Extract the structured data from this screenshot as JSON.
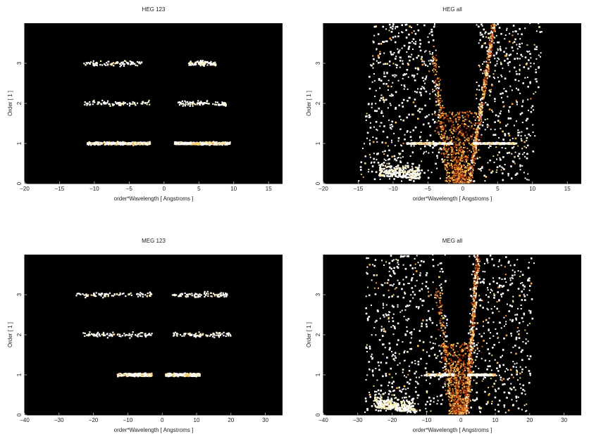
{
  "chart_data": [
    {
      "type": "heatmap",
      "title": "HEG 123",
      "xlabel": "order*Wavelength [ Angstroms ]",
      "ylabel": "Order [ 1 ]",
      "xlim": [
        -20,
        17
      ],
      "ylim": [
        0,
        4
      ],
      "xticks": [
        -20,
        -15,
        -10,
        -5,
        0,
        5,
        10,
        15
      ],
      "yticks": [
        0,
        1,
        2,
        3
      ],
      "background": "#000000",
      "bands": [
        {
          "order": 1,
          "x_ranges": [
            [
              -11,
              -2
            ],
            [
              1.5,
              9.5
            ]
          ],
          "density": "dense",
          "bright_core": [
            [
              -8,
              -2
            ],
            [
              2,
              6
            ]
          ]
        },
        {
          "order": 2,
          "x_ranges": [
            [
              -11.5,
              -2
            ],
            [
              2,
              9
            ]
          ],
          "density": "sparse"
        },
        {
          "order": 3,
          "x_ranges": [
            [
              -11.5,
              -3
            ],
            [
              3.5,
              7.5
            ]
          ],
          "density": "sparse"
        }
      ],
      "wings": null
    },
    {
      "type": "heatmap",
      "title": "HEG all",
      "xlabel": "order*Wavelength [ Angstroms ]",
      "ylabel": "Order [ 1 ]",
      "xlim": [
        -20,
        17
      ],
      "ylim": [
        0,
        4
      ],
      "xticks": [
        -20,
        -15,
        -10,
        -5,
        0,
        5,
        10,
        15
      ],
      "yticks": [
        0,
        1,
        2,
        3
      ],
      "background": "#000000",
      "bands": [
        {
          "order": 1,
          "x_ranges": [
            [
              -8,
              -1.5
            ],
            [
              1.5,
              7.5
            ]
          ],
          "density": "line"
        }
      ],
      "wings": {
        "neg_outer": -13,
        "pos_outer": 10,
        "neg_inner": -2.5,
        "pos_inner": 1.5,
        "neg_top": -9,
        "pos_top": 4.5
      }
    },
    {
      "type": "heatmap",
      "title": "MEG 123",
      "xlabel": "order*Wavelength [ Angstroms ]",
      "ylabel": "Order [ 1 ]",
      "xlim": [
        -40,
        35
      ],
      "ylim": [
        0,
        4
      ],
      "xticks": [
        -40,
        -30,
        -20,
        -10,
        0,
        10,
        20,
        30
      ],
      "yticks": [
        0,
        1,
        2,
        3
      ],
      "background": "#000000",
      "bands": [
        {
          "order": 1,
          "x_ranges": [
            [
              -13,
              -3
            ],
            [
              1,
              11
            ]
          ],
          "density": "dense",
          "bright_core": [
            [
              -10,
              -3
            ],
            [
              1,
              8
            ]
          ]
        },
        {
          "order": 2,
          "x_ranges": [
            [
              -23,
              -3
            ],
            [
              3,
              20
            ]
          ],
          "density": "sparse"
        },
        {
          "order": 3,
          "x_ranges": [
            [
              -25,
              -3
            ],
            [
              3,
              19
            ]
          ],
          "density": "sparse"
        }
      ],
      "wings": null
    },
    {
      "type": "heatmap",
      "title": "MEG all",
      "xlabel": "order*Wavelength [ Angstroms ]",
      "ylabel": "Order [ 1 ]",
      "xlim": [
        -40,
        35
      ],
      "ylim": [
        0,
        4
      ],
      "xticks": [
        -40,
        -30,
        -20,
        -10,
        0,
        10,
        20,
        30
      ],
      "yticks": [
        0,
        1,
        2,
        3
      ],
      "background": "#000000",
      "bands": [
        {
          "order": 1,
          "x_ranges": [
            [
              -10,
              -2
            ],
            [
              2,
              10
            ]
          ],
          "density": "line"
        }
      ],
      "wings": {
        "neg_outer": -26,
        "pos_outer": 20,
        "neg_inner": -3,
        "pos_inner": 2,
        "neg_top": -25,
        "pos_top": 5
      }
    }
  ]
}
